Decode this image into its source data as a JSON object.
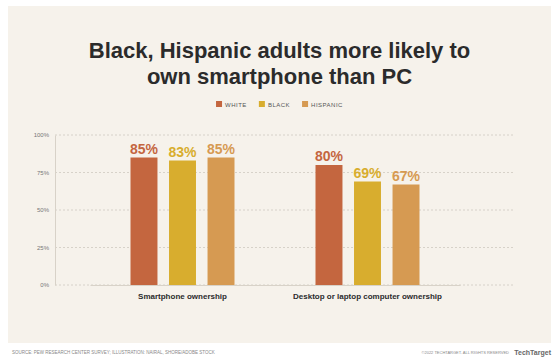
{
  "chart_data": {
    "type": "bar",
    "title": "Black, Hispanic adults more likely to own smartphone than PC",
    "categories": [
      "Smartphone ownership",
      "Desktop or laptop computer ownership"
    ],
    "series": [
      {
        "name": "WHITE",
        "color": "#c4663f",
        "values": [
          85,
          80
        ],
        "value_labels": [
          "85%",
          "80%"
        ]
      },
      {
        "name": "BLACK",
        "color": "#d8ad2e",
        "values": [
          83,
          69
        ],
        "value_labels": [
          "83%",
          "69%"
        ]
      },
      {
        "name": "HISPANIC",
        "color": "#d69a52",
        "values": [
          85,
          67
        ],
        "value_labels": [
          "85%",
          "67%"
        ]
      }
    ],
    "ylim": [
      0,
      100
    ],
    "yticks": [
      {
        "value": 0,
        "label": "0%"
      },
      {
        "value": 25,
        "label": "25%"
      },
      {
        "value": 50,
        "label": "50%"
      },
      {
        "value": 75,
        "label": "75%"
      },
      {
        "value": 100,
        "label": "100%"
      }
    ],
    "grid": true,
    "legend": "top",
    "data_labels": true,
    "annotations": [
      "SOURCE: PEW RESEARCH CENTER SURVEY; ILLUSTRATION: NAIRAL, SHORE/ADOBE STOCK",
      "©2022 TECHTARGET. ALL RIGHTS RESERVED",
      "TechTarget"
    ]
  }
}
